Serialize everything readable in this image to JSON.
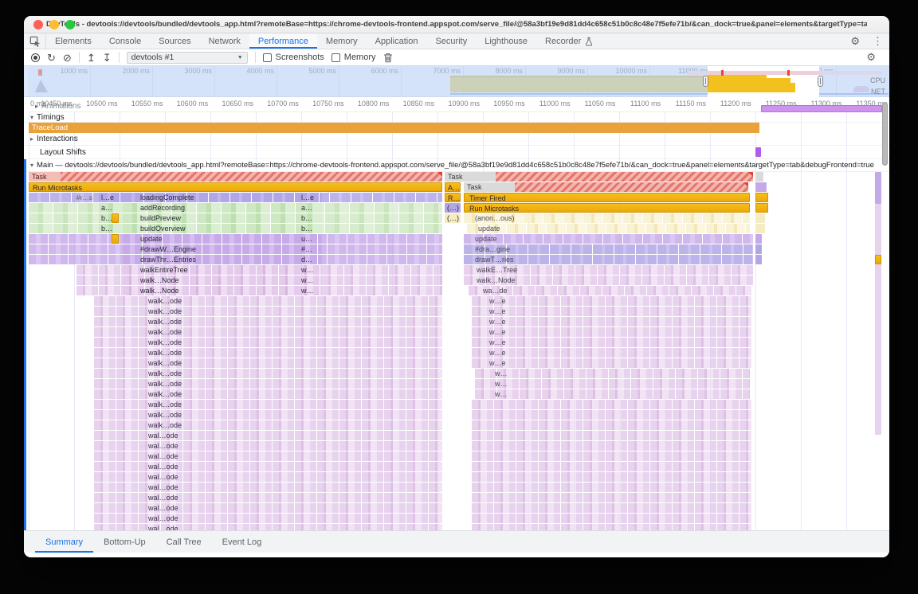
{
  "window": {
    "title": "DevTools - devtools://devtools/bundled/devtools_app.html?remoteBase=https://chrome-devtools-frontend.appspot.com/serve_file/@58a3bf19e9d81dd4c658c51b0c8c48e7f5efe71b/&can_dock=true&panel=elements&targetType=tab&debugFrontend=true"
  },
  "tabs": {
    "items": [
      {
        "label": "Elements"
      },
      {
        "label": "Console"
      },
      {
        "label": "Sources"
      },
      {
        "label": "Network"
      },
      {
        "label": "Performance",
        "active": true
      },
      {
        "label": "Memory"
      },
      {
        "label": "Application"
      },
      {
        "label": "Security"
      },
      {
        "label": "Lighthouse"
      },
      {
        "label": "Recorder",
        "icon": "flask"
      }
    ]
  },
  "toolbar": {
    "profile_select": "devtools #1",
    "screenshots_label": "Screenshots",
    "memory_label": "Memory"
  },
  "overview": {
    "ticks": [
      "1000 ms",
      "2000 ms",
      "3000 ms",
      "4000 ms",
      "5000 ms",
      "6000 ms",
      "7000 ms",
      "8000 ms",
      "9000 ms",
      "10000 ms",
      "11000 ms",
      "12000 ms",
      "13000 ms"
    ],
    "cpu_label": "CPU",
    "net_label": "NET"
  },
  "ruler": {
    "first": "0 ms",
    "ticks": [
      "10450 ms",
      "10500 ms",
      "10550 ms",
      "10600 ms",
      "10650 ms",
      "10700 ms",
      "10750 ms",
      "10800 ms",
      "10850 ms",
      "10900 ms",
      "10950 ms",
      "11000 ms",
      "11050 ms",
      "11100 ms",
      "11150 ms",
      "11200 ms",
      "11250 ms",
      "11300 ms",
      "11350 ms"
    ]
  },
  "tracks": {
    "animations": "Animations",
    "timings": "Timings",
    "traceload": "TraceLoad",
    "interactions": "Interactions",
    "layout_shifts": "Layout Shifts",
    "main": "Main — devtools://devtools/bundled/devtools_app.html?remoteBase=https://chrome-devtools-frontend.appspot.com/serve_file/@58a3bf19e9d81dd4c658c51b0c8c48e7f5efe71b/&can_dock=true&panel=elements&targetType=tab&debugFrontend=true"
  },
  "flame": {
    "left_rows": [
      {
        "label": "Task",
        "color": "hatch"
      },
      {
        "label": "Run Microtasks",
        "color": "gold"
      },
      {
        "label": "loadingComplete",
        "color": "peri",
        "pre": "#r…s",
        "chip1": "l…e",
        "chip2": "l…e"
      },
      {
        "label": "addRecording",
        "color": "green",
        "chip1": "a…",
        "chip2": "a…"
      },
      {
        "label": "buildPreview",
        "color": "green",
        "chip1": "b…",
        "chip2": "b…",
        "mark": true
      },
      {
        "label": "buildOverview",
        "color": "green",
        "chip1": "b…",
        "chip2": "b…"
      },
      {
        "label": "update",
        "color": "purple",
        "chip2": "u…",
        "mark": true
      },
      {
        "label": "#drawW…Engine",
        "color": "purple",
        "chip2": "#…"
      },
      {
        "label": "drawThr…Entries",
        "color": "purple",
        "chip2": "d…"
      },
      {
        "label": "walkEntireTree",
        "color": "mauve",
        "chip2": "w…"
      },
      {
        "label": "walk…Node",
        "color": "mauve",
        "chip2": "w…"
      },
      {
        "label": "walk…Node",
        "color": "mauve",
        "chip2": "w…"
      },
      {
        "label": "walk…ode",
        "color": "mauve"
      },
      {
        "label": "walk…ode",
        "color": "mauve"
      },
      {
        "label": "walk…ode",
        "color": "mauve"
      },
      {
        "label": "walk…ode",
        "color": "mauve"
      },
      {
        "label": "walk…ode",
        "color": "mauve"
      },
      {
        "label": "walk…ode",
        "color": "mauve"
      },
      {
        "label": "walk…ode",
        "color": "mauve"
      },
      {
        "label": "walk…ode",
        "color": "mauve"
      },
      {
        "label": "walk…ode",
        "color": "mauve"
      },
      {
        "label": "walk…ode",
        "color": "mauve"
      },
      {
        "label": "walk…ode",
        "color": "mauve"
      },
      {
        "label": "walk…ode",
        "color": "mauve"
      },
      {
        "label": "walk…ode",
        "color": "mauve"
      },
      {
        "label": "wal…ode",
        "color": "mauve"
      },
      {
        "label": "wal…ode",
        "color": "mauve"
      },
      {
        "label": "wal…ode",
        "color": "mauve"
      },
      {
        "label": "wal…ode",
        "color": "mauve"
      },
      {
        "label": "wal…ode",
        "color": "mauve"
      },
      {
        "label": "wal…ode",
        "color": "mauve"
      },
      {
        "label": "wal…ode",
        "color": "mauve"
      },
      {
        "label": "wal…ode",
        "color": "mauve"
      },
      {
        "label": "wal…ode",
        "color": "mauve"
      },
      {
        "label": "wal…ode",
        "color": "mauve"
      }
    ],
    "right_rows": [
      {
        "label": "Task",
        "color": "hatch"
      },
      {
        "label": "Task",
        "color": "hatch",
        "chip": "A…",
        "chip_color": "gold"
      },
      {
        "label": "Timer Fired",
        "color": "gold",
        "chip": "R…",
        "chip_color": "gold"
      },
      {
        "label": "Run Microtasks",
        "color": "gold",
        "chip": "(…)",
        "chip_color": "periS"
      },
      {
        "label": "(anon…ous)",
        "color": "pale",
        "chip": "(…)",
        "chip_color": "paleS"
      },
      {
        "label": "update",
        "color": "pale"
      },
      {
        "label": "update",
        "color": "purple"
      },
      {
        "label": "#dra…gine",
        "color": "peri"
      },
      {
        "label": "drawT…ries",
        "color": "peri"
      },
      {
        "label": "walkE…Tree",
        "color": "mauve"
      },
      {
        "label": "walk…Node",
        "color": "mauve"
      },
      {
        "label": "wa…de",
        "color": "mauve"
      },
      {
        "label": "w…e",
        "color": "mauve"
      },
      {
        "label": "w…e",
        "color": "mauve"
      },
      {
        "label": "w…e",
        "color": "mauve"
      },
      {
        "label": "w…e",
        "color": "mauve"
      },
      {
        "label": "w…e",
        "color": "mauve"
      },
      {
        "label": "w…e",
        "color": "mauve"
      },
      {
        "label": "w…e",
        "color": "mauve"
      },
      {
        "label": "w…",
        "color": "mauve"
      },
      {
        "label": "w…",
        "color": "mauve"
      },
      {
        "label": "w…",
        "color": "mauve"
      },
      {
        "label": "",
        "color": "mauve"
      },
      {
        "label": "",
        "color": "mauve"
      },
      {
        "label": "",
        "color": "mauve"
      },
      {
        "label": "",
        "color": "mauve"
      },
      {
        "label": "",
        "color": "mauve"
      },
      {
        "label": "",
        "color": "mauve"
      },
      {
        "label": "",
        "color": "mauve"
      },
      {
        "label": "",
        "color": "mauve"
      },
      {
        "label": "",
        "color": "mauve"
      },
      {
        "label": "",
        "color": "mauve"
      },
      {
        "label": "",
        "color": "mauve"
      },
      {
        "label": "",
        "color": "mauve"
      },
      {
        "label": "",
        "color": "mauve"
      }
    ]
  },
  "bottom_tabs": [
    {
      "label": "Summary",
      "active": true
    },
    {
      "label": "Bottom-Up"
    },
    {
      "label": "Call Tree"
    },
    {
      "label": "Event Log"
    }
  ],
  "colors": {
    "accent_blue": "#1a73e8",
    "task_red": "#e23f33",
    "scripting_gold": "#f0b400",
    "traceload_orange": "#e9a13c",
    "system_purple": "#c4a9e8",
    "painting_mauve": "#e4cbec"
  }
}
